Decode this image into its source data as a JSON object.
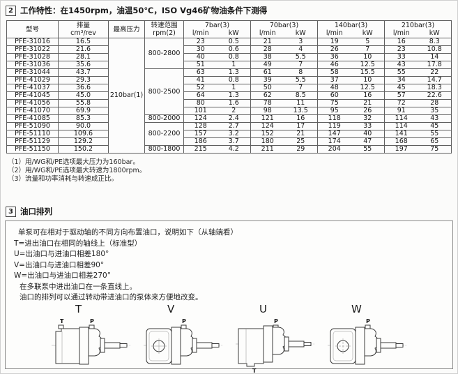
{
  "section2": {
    "num": "2",
    "title": "工作特性：在1450rpm，油温50℃，ISO Vg46矿物油条件下测得",
    "table": {
      "headers": {
        "model": "型号",
        "disp1": "排量",
        "disp2": "cm³/rev",
        "maxp": "最高压力",
        "rpm1": "转速范围",
        "rpm2": "rpm(2)",
        "flow": "l/min",
        "power": "kW",
        "groups": [
          "7bar(3)",
          "70bar(3)",
          "140bar(3)",
          "210bar(3)"
        ]
      },
      "max_pressure_value": "210bar(1)",
      "rows": [
        {
          "model": "PFE-31016",
          "disp": "16.5",
          "rpm": "800-2800",
          "rpmSpan": 4,
          "vals": [
            "23",
            "0.5",
            "21",
            "3",
            "19",
            "5",
            "16",
            "8.3"
          ]
        },
        {
          "model": "PFE-31022",
          "disp": "21.6",
          "vals": [
            "30",
            "0.6",
            "28",
            "4",
            "26",
            "7",
            "23",
            "10.8"
          ]
        },
        {
          "model": "PFE-31028",
          "disp": "28.1",
          "vals": [
            "40",
            "0.8",
            "38",
            "5.5",
            "36",
            "10",
            "33",
            "14"
          ]
        },
        {
          "model": "PFE-31036",
          "disp": "35.6",
          "vals": [
            "51",
            "1",
            "49",
            "7",
            "46",
            "12.5",
            "43",
            "17.8"
          ]
        },
        {
          "model": "PFE-31044",
          "disp": "43.7",
          "rpm": "800-2500",
          "rpmSpan": 6,
          "vals": [
            "63",
            "1.3",
            "61",
            "8",
            "58",
            "15.5",
            "55",
            "22"
          ]
        },
        {
          "model": "PFE-41029",
          "disp": "29.3",
          "vals": [
            "41",
            "0.8",
            "39",
            "5.5",
            "37",
            "10",
            "34",
            "14.7"
          ]
        },
        {
          "model": "PFE-41037",
          "disp": "36.6",
          "vals": [
            "52",
            "1",
            "50",
            "7",
            "48",
            "12.5",
            "45",
            "18.3"
          ]
        },
        {
          "model": "PFE-41045",
          "disp": "45.0",
          "vals": [
            "64",
            "1.3",
            "62",
            "8.5",
            "60",
            "16",
            "57",
            "22.6"
          ]
        },
        {
          "model": "PFE-41056",
          "disp": "55.8",
          "vals": [
            "80",
            "1.6",
            "78",
            "11",
            "75",
            "21",
            "72",
            "28"
          ]
        },
        {
          "model": "PFE-41070",
          "disp": "69.9",
          "vals": [
            "101",
            "2",
            "98",
            "13.5",
            "95",
            "26",
            "91",
            "35"
          ]
        },
        {
          "model": "PFE-41085",
          "disp": "85.3",
          "rpm": "800-2000",
          "rpmSpan": 1,
          "vals": [
            "124",
            "2.4",
            "121",
            "16",
            "118",
            "32",
            "114",
            "43"
          ]
        },
        {
          "model": "PFE-51090",
          "disp": "90.0",
          "rpm": "800-2200",
          "rpmSpan": 3,
          "vals": [
            "128",
            "2.7",
            "124",
            "17",
            "119",
            "33",
            "114",
            "45"
          ]
        },
        {
          "model": "PFE-51110",
          "disp": "109.6",
          "vals": [
            "157",
            "3.2",
            "152",
            "21",
            "147",
            "40",
            "141",
            "55"
          ]
        },
        {
          "model": "PFE-51129",
          "disp": "129.2",
          "vals": [
            "186",
            "3.7",
            "180",
            "25",
            "174",
            "47",
            "168",
            "65"
          ]
        },
        {
          "model": "PFE-51150",
          "disp": "150.2",
          "rpm": "800-1800",
          "rpmSpan": 1,
          "vals": [
            "215",
            "4.2",
            "211",
            "29",
            "204",
            "55",
            "197",
            "75"
          ]
        }
      ]
    },
    "notes": [
      "（1）用/WG和/PE选项最大压力为160bar。",
      "（2）用/WG和/PE选项最大转速为1800rpm。",
      "（3）流量和功率消耗与转速成正比。"
    ]
  },
  "section3": {
    "num": "3",
    "title": "油口排列",
    "lines": [
      "单泵可在相对于驱动轴的不同方向布置油口，说明如下（从轴端看）",
      "T=进出油口在相同的轴线上（标准型）",
      "U=出油口与进油口相差180°",
      "V=出油口与进油口相差90°",
      "W=出油口与进油口相差270°",
      "在多联泵中进出油口在一条直线上。",
      "油口的排列可以通过转动带进油口的泵体来方便地改变。"
    ],
    "diagrams": [
      {
        "name": "T",
        "ports": {
          "top_left": "T",
          "top": "P"
        }
      },
      {
        "name": "V",
        "ports": {
          "top": "P"
        }
      },
      {
        "name": "U",
        "ports": {
          "top": "P",
          "bottom": "T"
        }
      },
      {
        "name": "W",
        "ports": {
          "top": "P"
        }
      }
    ]
  }
}
